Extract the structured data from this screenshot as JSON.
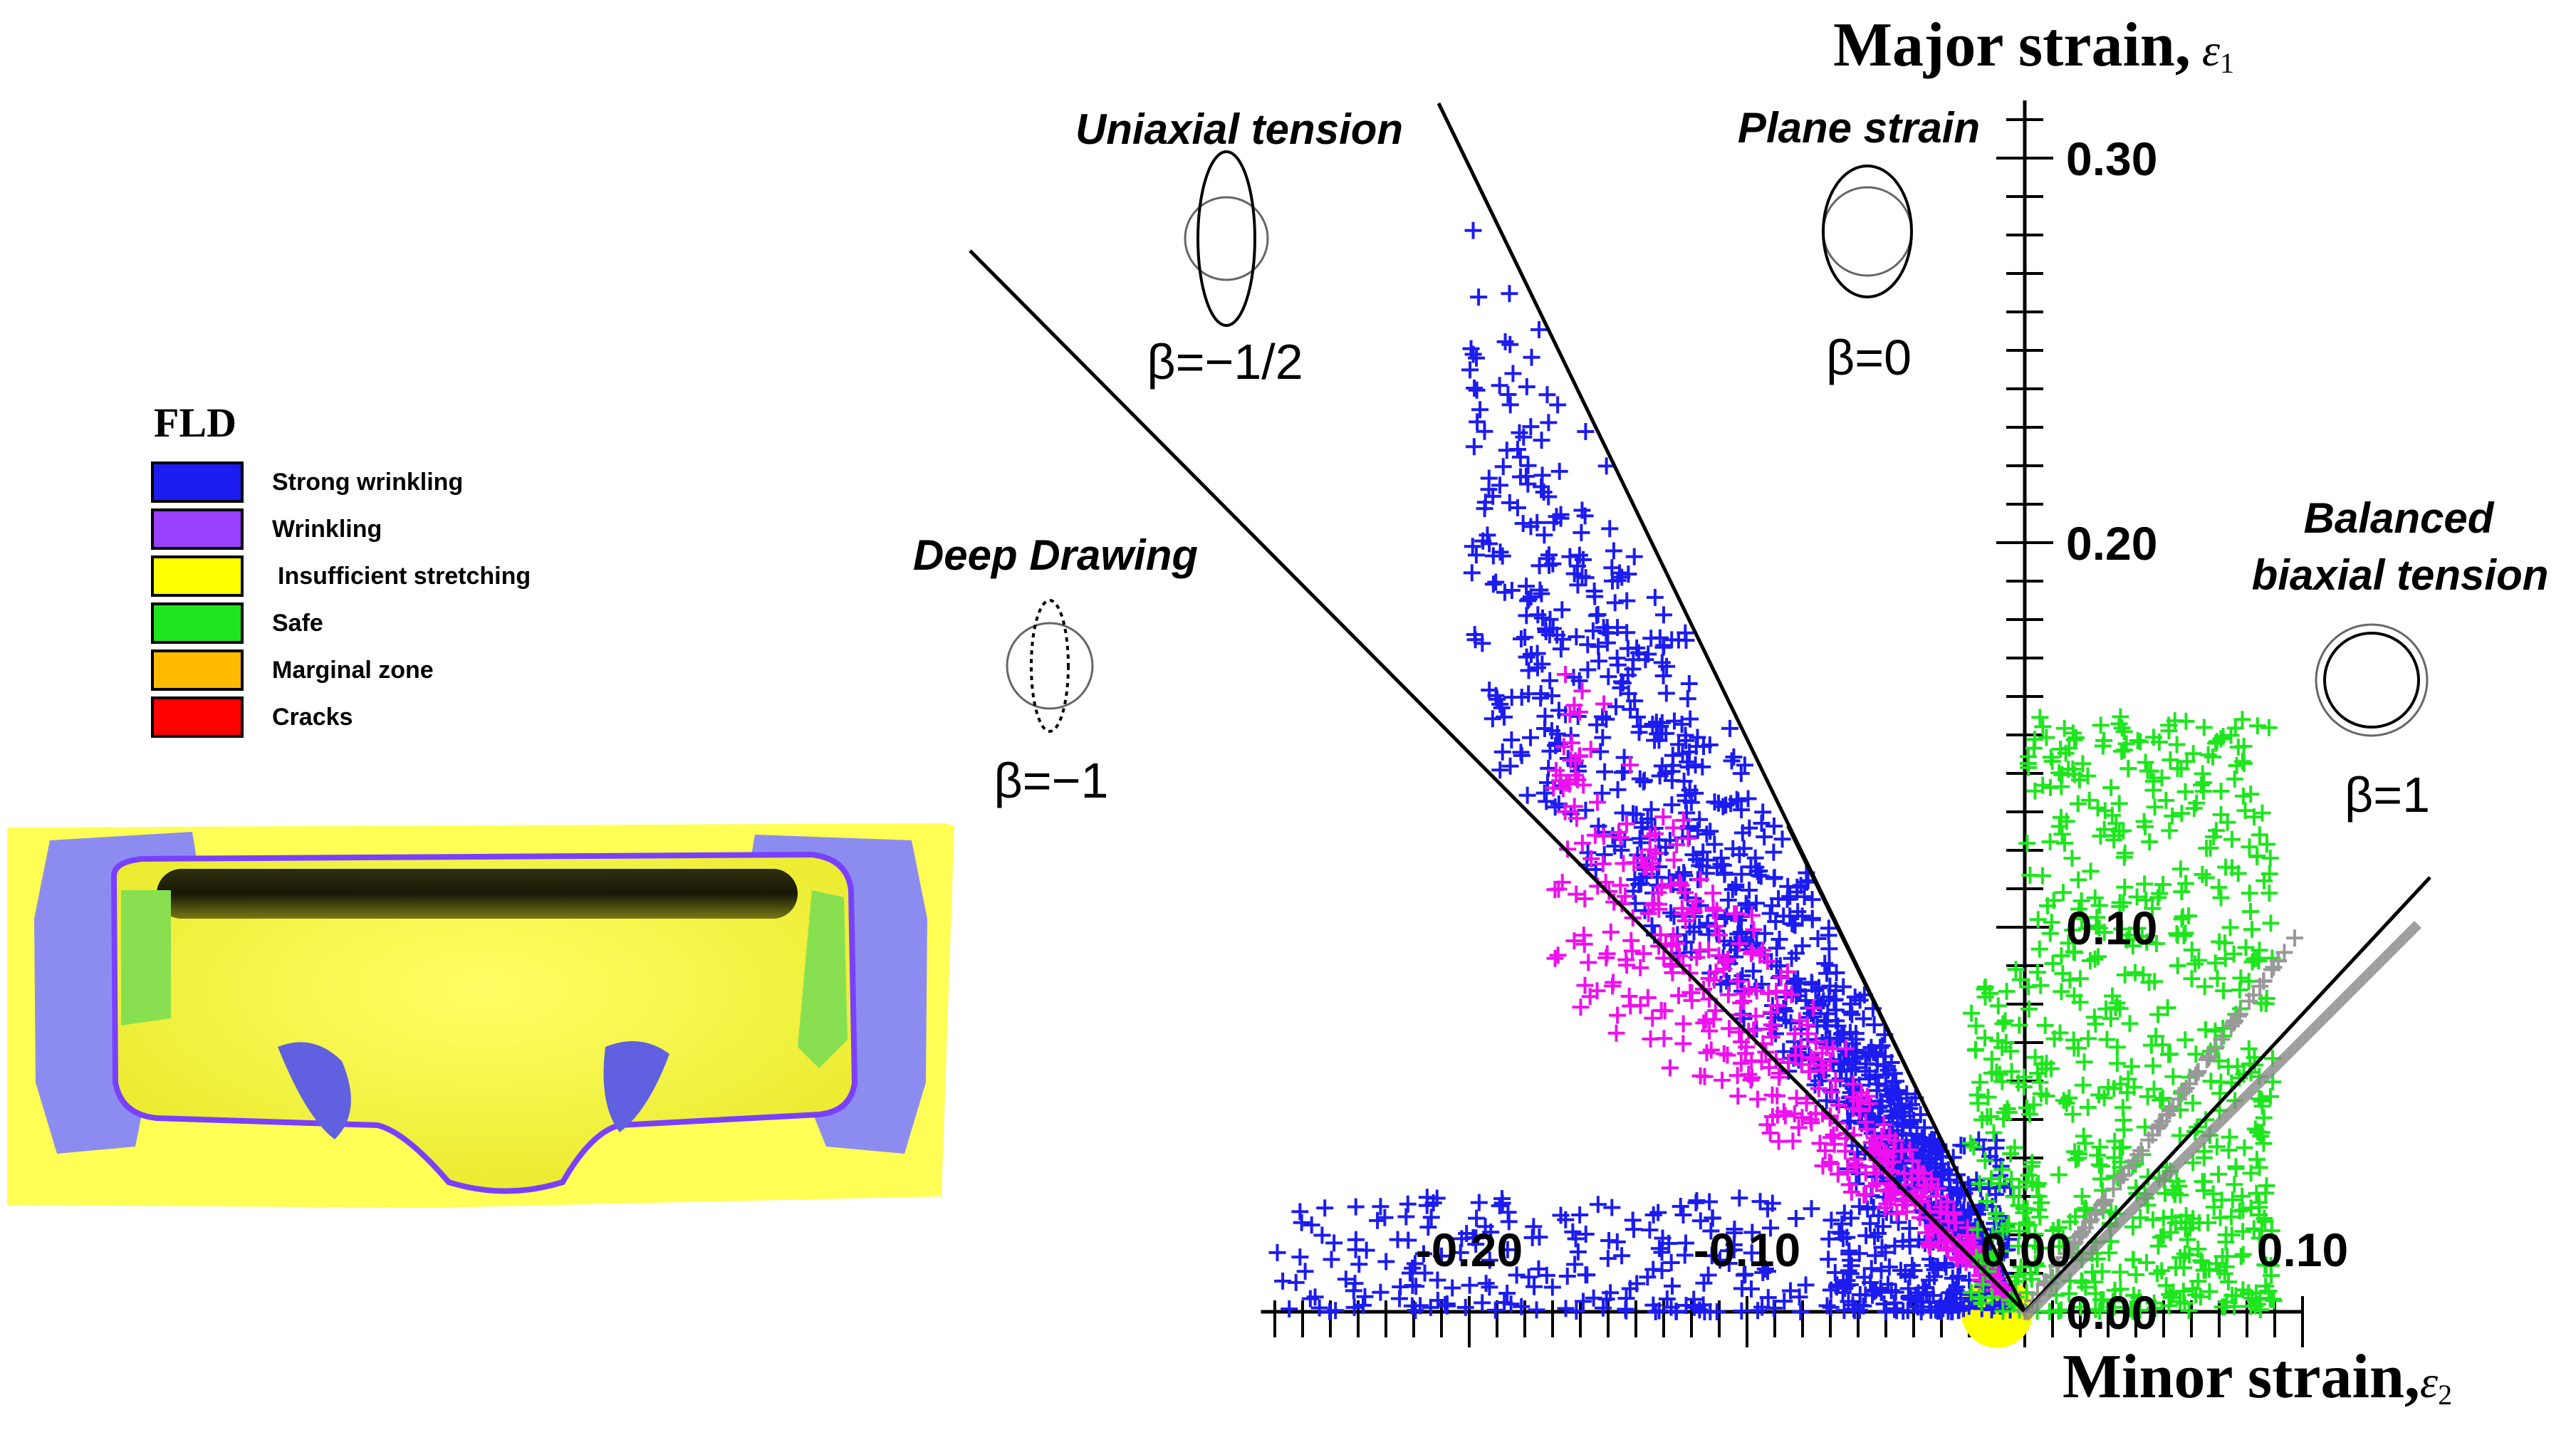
{
  "legend": {
    "title": "FLD",
    "items": [
      {
        "label": "Strong wrinkling",
        "color": "#1c1cf0"
      },
      {
        "label": "Wrinkling",
        "color": "#9a40ff"
      },
      {
        "label": "Insufficient stretching",
        "color": "#ffff00"
      },
      {
        "label": "Safe",
        "color": "#1fe51f"
      },
      {
        "label": "Marginal zone",
        "color": "#ffbb00"
      },
      {
        "label": "Cracks",
        "color": "#ff0000"
      }
    ]
  },
  "chart_data": {
    "type": "scatter",
    "xlabel": "Minor strain,",
    "xlabel_symbol": "ε",
    "xlabel_sub": "2",
    "ylabel": "Major strain,",
    "ylabel_symbol": "ε",
    "ylabel_sub": "1",
    "xlim": [
      -0.275,
      0.1
    ],
    "ylim": [
      0.0,
      0.3
    ],
    "x_ticks": [
      {
        "v": -0.2,
        "label": "-0.20"
      },
      {
        "v": -0.1,
        "label": "-0.10"
      },
      {
        "v": 0.0,
        "label": "0.00"
      },
      {
        "v": 0.1,
        "label": "0.10"
      }
    ],
    "y_ticks": [
      {
        "v": 0.0,
        "label": "0.00"
      },
      {
        "v": 0.1,
        "label": "0.10"
      },
      {
        "v": 0.2,
        "label": "0.20"
      },
      {
        "v": 0.3,
        "label": "0.30"
      }
    ],
    "strain_paths": [
      {
        "beta": -1,
        "label": "β=−1",
        "mode": "Deep Drawing"
      },
      {
        "beta": -0.5,
        "label": "β=−1/2",
        "mode": "Uniaxial tension"
      },
      {
        "beta": 0,
        "label": "β=0",
        "mode": "Plane strain"
      },
      {
        "beta": 1,
        "label": "β=1",
        "mode": "Balanced biaxial tension"
      }
    ],
    "series": [
      {
        "color": "#1c1cf0",
        "regions": [
          {
            "x0": -0.2,
            "x1": -0.01,
            "ratio_min": -1.35,
            "ratio_max": -0.78,
            "count": 900
          },
          {
            "x0": -0.27,
            "x1": -0.02,
            "ymin": 0.0,
            "ymax": 0.03,
            "count": 260
          },
          {
            "x0": -0.07,
            "x1": -0.005,
            "ymin": 0.0,
            "ymax": 0.045,
            "count": 220
          }
        ]
      },
      {
        "color": "#ee10ee",
        "regions": [
          {
            "x0": -0.17,
            "x1": -0.004,
            "ratio_min": -0.98,
            "ratio_max": -0.52,
            "count": 460
          }
        ]
      },
      {
        "color": "#1fe51f",
        "regions": [
          {
            "x0": 0.0,
            "x1": 0.09,
            "ymin": 0.0,
            "ymax": 0.155,
            "count": 620
          },
          {
            "x0": -0.02,
            "x1": 0.0,
            "ymin": 0.0,
            "ymax": 0.09,
            "count": 90
          }
        ]
      },
      {
        "color": "#999999",
        "regions": [
          {
            "x0": 0.0,
            "x1": 0.1,
            "ratio_min": 1.0,
            "ratio_max": 1.0,
            "count": 80
          }
        ]
      }
    ],
    "safe_zone": {
      "color": "#ffff00",
      "center": [
        -0.01,
        0.0
      ],
      "radius": 0.013
    }
  }
}
